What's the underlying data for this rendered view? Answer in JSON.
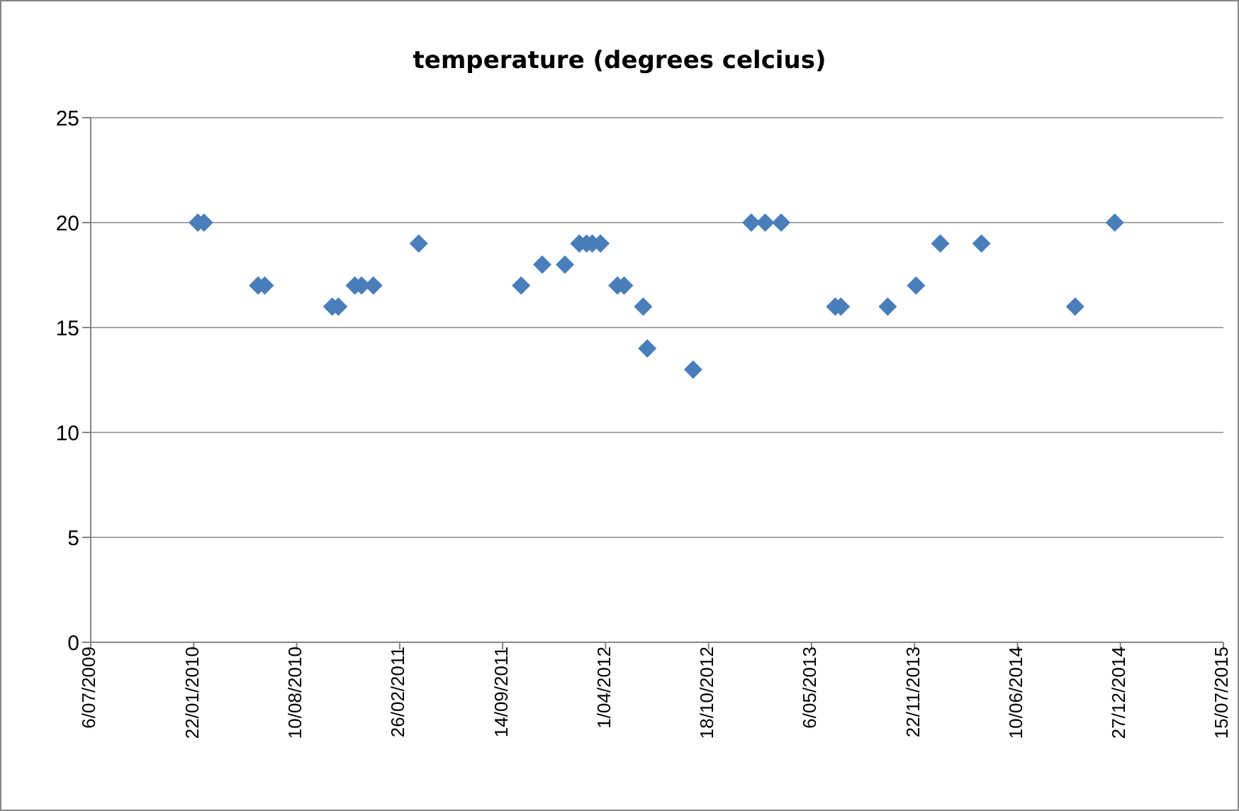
{
  "chart_data": {
    "type": "scatter",
    "title": "temperature (degrees celcius)",
    "x": [
      "2010-01-30",
      "2010-02-11",
      "2010-05-27",
      "2010-06-09",
      "2010-10-18",
      "2010-10-30",
      "2010-12-01",
      "2010-12-14",
      "2011-01-06",
      "2011-04-04",
      "2011-10-20",
      "2011-11-30",
      "2012-01-13",
      "2012-02-10",
      "2012-02-24",
      "2012-03-06",
      "2012-03-22",
      "2012-04-24",
      "2012-05-07",
      "2012-06-13",
      "2012-06-21",
      "2012-09-18",
      "2013-01-09",
      "2013-02-05",
      "2013-03-08",
      "2013-06-21",
      "2013-07-02",
      "2013-10-01",
      "2013-11-25",
      "2014-01-11",
      "2014-04-01",
      "2014-09-30",
      "2014-12-16"
    ],
    "series": [
      {
        "color": "#4a7ebb",
        "values": [
          20,
          20,
          17,
          17,
          16,
          16,
          17,
          17,
          17,
          19,
          17,
          18,
          18,
          19,
          19,
          19,
          19,
          17,
          17,
          16,
          14,
          13,
          20,
          20,
          20,
          16,
          16,
          16,
          17,
          19,
          19,
          16,
          20
        ]
      }
    ],
    "marker": "diamond",
    "grid": "y",
    "ylim": [
      0,
      25
    ],
    "yticks": [
      0,
      5,
      10,
      15,
      20,
      25
    ],
    "xlim": [
      "2009-07-06",
      "2015-07-15"
    ],
    "xticks": [
      {
        "value": "2009-07-06",
        "label": "6/07/2009"
      },
      {
        "value": "2010-01-22",
        "label": "22/01/2010"
      },
      {
        "value": "2010-08-10",
        "label": "10/08/2010"
      },
      {
        "value": "2011-02-26",
        "label": "26/02/2011"
      },
      {
        "value": "2011-09-14",
        "label": "14/09/2011"
      },
      {
        "value": "2012-04-01",
        "label": "1/04/2012"
      },
      {
        "value": "2012-10-18",
        "label": "18/10/2012"
      },
      {
        "value": "2013-05-06",
        "label": "6/05/2013"
      },
      {
        "value": "2013-11-22",
        "label": "22/11/2013"
      },
      {
        "value": "2014-06-10",
        "label": "10/06/2014"
      },
      {
        "value": "2014-12-27",
        "label": "27/12/2014"
      },
      {
        "value": "2015-07-15",
        "label": "15/07/2015"
      }
    ]
  }
}
